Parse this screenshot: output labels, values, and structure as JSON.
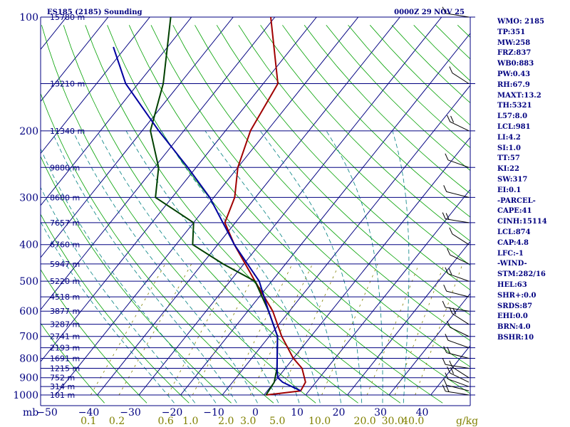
{
  "chart_data": {
    "type": "line",
    "title": "ES185 (2185) Sounding",
    "timestamp": "0000Z 29 NOV 25",
    "y_axis": {
      "scale": "log-pressure",
      "unit_label": "mb",
      "range_mb": [
        1000,
        100
      ],
      "ticks": [
        1000,
        900,
        800,
        700,
        600,
        500,
        400,
        300,
        200,
        100
      ]
    },
    "x_axis": {
      "type": "skewed-temperature",
      "unit": "°C",
      "ticks": [
        -50,
        -40,
        -30,
        -20,
        -10,
        0,
        10,
        20,
        30,
        40
      ],
      "mixing_ratio_unit": "g/kg",
      "mixing_ratio_ticks": [
        "0.1",
        "0.2",
        "0.6",
        "1.0",
        "2.0",
        "3.0",
        "5.0",
        "10.0",
        "20.0",
        "30.0",
        "40.0"
      ]
    },
    "height_labels": [
      {
        "p": 100,
        "label": "15780 m"
      },
      {
        "p": 150,
        "label": "13210 m"
      },
      {
        "p": 200,
        "label": "11340 m"
      },
      {
        "p": 250,
        "label": "9880 m"
      },
      {
        "p": 300,
        "label": "8680 m"
      },
      {
        "p": 350,
        "label": "7657 m"
      },
      {
        "p": 400,
        "label": "6760 m"
      },
      {
        "p": 450,
        "label": "5947 m"
      },
      {
        "p": 500,
        "label": "5220 m"
      },
      {
        "p": 550,
        "label": "4518 m"
      },
      {
        "p": 600,
        "label": "3877 m"
      },
      {
        "p": 650,
        "label": "3287 m"
      },
      {
        "p": 700,
        "label": "2741 m"
      },
      {
        "p": 750,
        "label": "2193 m"
      },
      {
        "p": 800,
        "label": "1691 m"
      },
      {
        "p": 850,
        "label": "1215 m"
      },
      {
        "p": 900,
        "label": "752 m"
      },
      {
        "p": 950,
        "label": "314 m"
      },
      {
        "p": 1000,
        "label": "101 m"
      }
    ],
    "series": [
      {
        "name": "Temperature",
        "color": "#a00000",
        "points": [
          [
            1000,
            0.5
          ],
          [
            975,
            8
          ],
          [
            925,
            7.5
          ],
          [
            850,
            4
          ],
          [
            800,
            0
          ],
          [
            700,
            -7
          ],
          [
            600,
            -14
          ],
          [
            500,
            -24
          ],
          [
            400,
            -36
          ],
          [
            350,
            -42.5
          ],
          [
            300,
            -45
          ],
          [
            250,
            -50
          ],
          [
            200,
            -54
          ],
          [
            150,
            -56.5
          ],
          [
            100,
            -71
          ]
        ]
      },
      {
        "name": "Dewpoint",
        "color": "#004000",
        "points": [
          [
            1000,
            0.5
          ],
          [
            925,
            0
          ],
          [
            850,
            -2
          ],
          [
            700,
            -8
          ],
          [
            600,
            -15
          ],
          [
            500,
            -24
          ],
          [
            450,
            -35
          ],
          [
            400,
            -46
          ],
          [
            350,
            -50
          ],
          [
            300,
            -64
          ],
          [
            250,
            -69
          ],
          [
            200,
            -78
          ],
          [
            150,
            -84
          ],
          [
            100,
            -95
          ]
        ]
      },
      {
        "name": "Parcel",
        "color": "#0000a0",
        "points": [
          [
            975,
            8
          ],
          [
            925,
            2
          ],
          [
            900,
            0
          ],
          [
            850,
            -2
          ],
          [
            700,
            -8
          ],
          [
            600,
            -15
          ],
          [
            500,
            -23
          ],
          [
            400,
            -36
          ],
          [
            300,
            -51
          ],
          [
            250,
            -62
          ],
          [
            200,
            -76
          ],
          [
            150,
            -93
          ],
          [
            120,
            -103
          ]
        ]
      }
    ],
    "wind_barbs_present": true
  },
  "stats": [
    "WMO: 2185",
    "TP:351",
    "MW:258",
    "FRZ:837",
    "WB0:883",
    "PW:0.43",
    "RH:67.9",
    "MAXT:13.2",
    "TH:5321",
    "L57:8.0",
    "LCL:981",
    "LI:4.2",
    "SI:1.0",
    "TT:57",
    "KI:22",
    "SW:317",
    "EI:0.1",
    "-PARCEL-",
    "CAPE:41",
    "CINH:15114",
    "LCL:874",
    "CAP:4.8",
    "LFC:-1",
    "-WIND-",
    "STM:282/16",
    "HEL:63",
    "SHR+:0.0",
    "SRDS:87",
    "EHI:0.0",
    "BRN:4.0",
    "BSHR:10"
  ],
  "colors": {
    "isobar": "#000080",
    "isotherm": "#000080",
    "dry_adiabat": "#00a000",
    "moist_adiabat": "#008080",
    "mixing_ratio": "#808000",
    "axis_text": "#000080",
    "mixing_text": "#808000"
  }
}
